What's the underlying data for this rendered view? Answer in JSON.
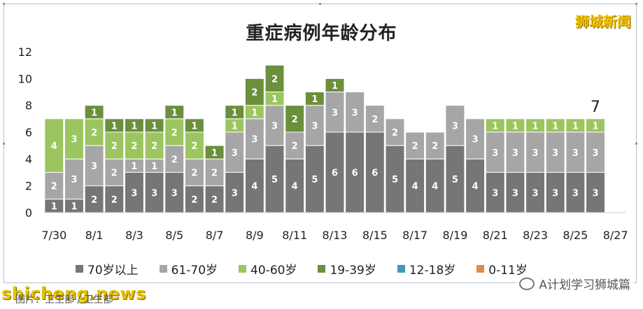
{
  "watermarks": {
    "top_logo": "狮城新闻",
    "site": "shicheng.news",
    "account": "A计划学习狮城篇",
    "source_note": "图片：卫生部 / 卫生部"
  },
  "colors": {
    "70岁以上": "#767676",
    "61-70岁": "#a6a6a6",
    "40-60岁": "#9bc55e",
    "19-39岁": "#6c8f3c",
    "12-18岁": "#3e9bb0",
    "0-11岁": "#e08c4a"
  },
  "chart_data": {
    "type": "bar",
    "stacked": true,
    "title": "重症病例年龄分布",
    "ylim": [
      0,
      12
    ],
    "yticks": [
      "0",
      "2",
      "4",
      "6",
      "8",
      "10",
      "12"
    ],
    "grid": false,
    "legend_position": "bottom",
    "categories": [
      "7/30",
      "7/31",
      "8/1",
      "8/2",
      "8/3",
      "8/4",
      "8/5",
      "8/6",
      "8/7",
      "8/8",
      "8/9",
      "8/10",
      "8/11",
      "8/12",
      "8/13",
      "8/14",
      "8/15",
      "8/16",
      "8/17",
      "8/18",
      "8/19",
      "8/20",
      "8/21",
      "8/22",
      "8/23",
      "8/24",
      "8/25",
      "8/26",
      "8/27"
    ],
    "xtick_labels": [
      "7/30",
      "8/1",
      "8/3",
      "8/5",
      "8/7",
      "8/9",
      "8/11",
      "8/13",
      "8/15",
      "8/17",
      "8/19",
      "8/21",
      "8/23",
      "8/25",
      "8/27"
    ],
    "series": [
      {
        "name": "70岁以上",
        "values": [
          1,
          1,
          2,
          2,
          3,
          3,
          3,
          2,
          2,
          3,
          4,
          5,
          4,
          5,
          6,
          6,
          6,
          5,
          4,
          4,
          5,
          4,
          3,
          3,
          3,
          3,
          3,
          3,
          0
        ]
      },
      {
        "name": "61-70岁",
        "values": [
          2,
          3,
          3,
          2,
          1,
          1,
          2,
          2,
          2,
          3,
          3,
          3,
          2,
          3,
          3,
          3,
          2,
          2,
          2,
          2,
          3,
          3,
          3,
          3,
          3,
          3,
          3,
          3,
          0
        ]
      },
      {
        "name": "40-60岁",
        "values": [
          4,
          3,
          2,
          2,
          2,
          2,
          2,
          2,
          0,
          1,
          1,
          1,
          0,
          0,
          0,
          0,
          0,
          0,
          0,
          0,
          0,
          0,
          1,
          1,
          1,
          1,
          1,
          1,
          0
        ]
      },
      {
        "name": "19-39岁",
        "values": [
          0,
          0,
          1,
          1,
          1,
          1,
          1,
          1,
          1,
          1,
          2,
          2,
          2,
          1,
          1,
          0,
          0,
          0,
          0,
          0,
          0,
          0,
          0,
          0,
          0,
          0,
          0,
          0,
          0
        ]
      },
      {
        "name": "12-18岁",
        "values": [
          0,
          0,
          0,
          0,
          0,
          0,
          0,
          0,
          0,
          0,
          0,
          0,
          0,
          0,
          0,
          0,
          0,
          0,
          0,
          0,
          0,
          0,
          0,
          0,
          0,
          0,
          0,
          0,
          0
        ]
      },
      {
        "name": "0-11岁",
        "values": [
          0,
          0,
          0,
          0,
          0,
          0,
          0,
          0,
          0,
          0,
          0,
          0,
          0,
          0,
          0,
          0,
          0,
          0,
          0,
          0,
          0,
          0,
          0,
          0,
          0,
          0,
          0,
          0,
          0
        ]
      }
    ],
    "annotations": [
      {
        "category": "8/26",
        "text": "7"
      }
    ]
  }
}
